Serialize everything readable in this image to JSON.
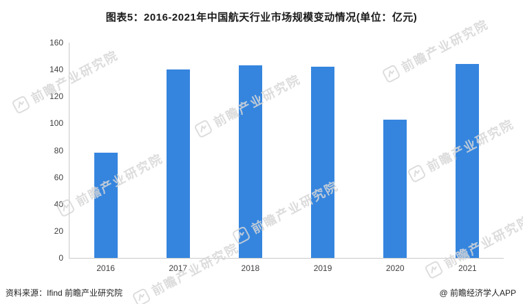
{
  "title": "图表5：2016-2021年中国航天行业市场规模变动情况(单位：亿元)",
  "chart_data": {
    "type": "bar",
    "categories": [
      "2016",
      "2017",
      "2018",
      "2019",
      "2020",
      "2021"
    ],
    "values": [
      78,
      140,
      143,
      142,
      103,
      144
    ],
    "title": "图表5：2016-2021年中国航天行业市场规模变动情况(单位：亿元)",
    "xlabel": "",
    "ylabel": "",
    "ylim": [
      0,
      160
    ],
    "ytick_step": 20,
    "bar_color": "#3585DE",
    "grid": false,
    "legend": "none"
  },
  "watermark": {
    "text": "前瞻产业研究院"
  },
  "footer": {
    "source": "资料来源：Ifind 前瞻产业研究院",
    "attribution": "@ 前瞻经济学人APP"
  }
}
